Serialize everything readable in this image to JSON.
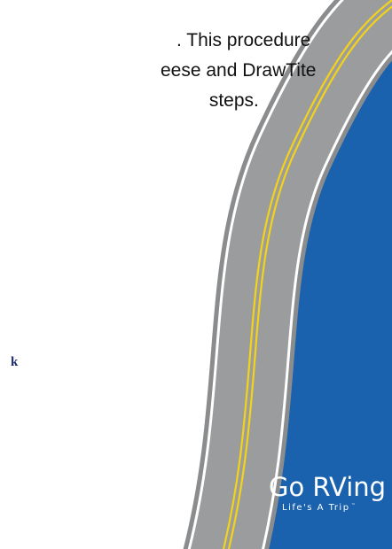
{
  "body_text": {
    "lines": [
      ". This procedure",
      "eese and DrawTite",
      " steps."
    ]
  },
  "footer_fragment": "k",
  "logo": {
    "title": "Go RVing",
    "tagline": "Life's A Trip",
    "trademark": "™"
  }
}
